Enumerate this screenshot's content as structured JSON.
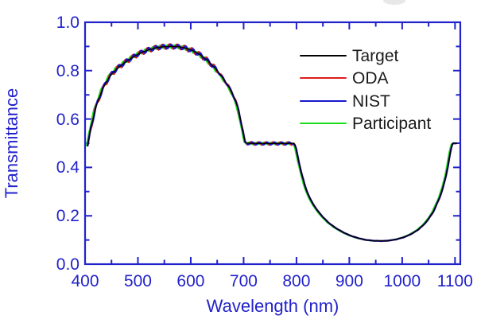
{
  "figure": {
    "background": "#ffffff",
    "axis_color": "#2222cc",
    "text_color": "#1a1a1a",
    "artifact_note": "faint cropped text remnant at top edge"
  },
  "legend": {
    "position": "upper-right-inside"
  },
  "chart_data": {
    "type": "line",
    "title": "",
    "xlabel": "Wavelength (nm)",
    "ylabel": "Transmittance",
    "xlim": [
      400,
      1110
    ],
    "ylim": [
      0.0,
      1.0
    ],
    "grid": false,
    "x_major_ticks": [
      {
        "value": 400,
        "label": "400"
      },
      {
        "value": 500,
        "label": "500"
      },
      {
        "value": 600,
        "label": "600"
      },
      {
        "value": 700,
        "label": "700"
      },
      {
        "value": 800,
        "label": "800"
      },
      {
        "value": 900,
        "label": "900"
      },
      {
        "value": 1000,
        "label": "1000"
      },
      {
        "value": 1100,
        "label": "1100"
      }
    ],
    "x_minor_ticks": [
      450,
      550,
      650,
      750,
      850,
      950,
      1050
    ],
    "y_major_ticks": [
      {
        "value": 0.0,
        "label": "0.0"
      },
      {
        "value": 0.2,
        "label": "0.2"
      },
      {
        "value": 0.4,
        "label": "0.4"
      },
      {
        "value": 0.6,
        "label": "0.6"
      },
      {
        "value": 0.8,
        "label": "0.8"
      },
      {
        "value": 1.0,
        "label": "1.0"
      }
    ],
    "y_minor_ticks": [
      0.1,
      0.3,
      0.5,
      0.7,
      0.9
    ],
    "series": [
      {
        "name": "Target",
        "color": "#000000",
        "width": 1.4,
        "fringe_amp": 0,
        "fringe_phase": 0,
        "dx": 0,
        "z": 4
      },
      {
        "name": "ODA",
        "color": "#dd1d1d",
        "width": 2.2,
        "fringe_amp": 0.0105,
        "fringe_phase": 1.0,
        "dx": 0,
        "z": 2
      },
      {
        "name": "NIST",
        "color": "#1818cc",
        "width": 2.2,
        "fringe_amp": 0.0085,
        "fringe_phase": 0,
        "dx": 0,
        "z": 3
      },
      {
        "name": "Participant",
        "color": "#1ddd1d",
        "width": 2.2,
        "fringe_amp": 0.0065,
        "fringe_phase": 2.0,
        "dx": -1.2,
        "z": 1
      }
    ],
    "fringe_period_nm": 14,
    "fringe_windows": [
      [
        410,
        650,
        1.0
      ],
      [
        650,
        700,
        0.5
      ],
      [
        706,
        793,
        0.6
      ],
      [
        793,
        815,
        0.25
      ],
      [
        815,
        1048,
        0.06
      ],
      [
        1048,
        1092,
        0.18
      ],
      [
        1092,
        1103,
        0.08
      ]
    ],
    "base_points": [
      [
        405,
        0.49
      ],
      [
        410,
        0.555
      ],
      [
        415,
        0.6
      ],
      [
        420,
        0.645
      ],
      [
        425,
        0.678
      ],
      [
        430,
        0.706
      ],
      [
        435,
        0.731
      ],
      [
        440,
        0.752
      ],
      [
        445,
        0.77
      ],
      [
        450,
        0.785
      ],
      [
        460,
        0.808
      ],
      [
        470,
        0.825
      ],
      [
        480,
        0.841
      ],
      [
        490,
        0.855
      ],
      [
        500,
        0.868
      ],
      [
        510,
        0.878
      ],
      [
        520,
        0.886
      ],
      [
        530,
        0.892
      ],
      [
        540,
        0.897
      ],
      [
        550,
        0.899
      ],
      [
        560,
        0.9
      ],
      [
        570,
        0.9
      ],
      [
        580,
        0.898
      ],
      [
        590,
        0.893
      ],
      [
        600,
        0.886
      ],
      [
        610,
        0.876
      ],
      [
        620,
        0.862
      ],
      [
        630,
        0.845
      ],
      [
        640,
        0.824
      ],
      [
        650,
        0.8
      ],
      [
        660,
        0.772
      ],
      [
        670,
        0.74
      ],
      [
        678,
        0.71
      ],
      [
        684,
        0.68
      ],
      [
        690,
        0.64
      ],
      [
        695,
        0.59
      ],
      [
        700,
        0.535
      ],
      [
        703,
        0.505
      ],
      [
        706,
        0.5
      ],
      [
        720,
        0.499
      ],
      [
        740,
        0.499
      ],
      [
        760,
        0.499
      ],
      [
        780,
        0.499
      ],
      [
        795,
        0.499
      ],
      [
        798,
        0.488
      ],
      [
        802,
        0.45
      ],
      [
        806,
        0.41
      ],
      [
        810,
        0.372
      ],
      [
        815,
        0.332
      ],
      [
        820,
        0.3
      ],
      [
        826,
        0.27
      ],
      [
        832,
        0.247
      ],
      [
        840,
        0.221
      ],
      [
        850,
        0.195
      ],
      [
        860,
        0.173
      ],
      [
        870,
        0.156
      ],
      [
        880,
        0.142
      ],
      [
        890,
        0.13
      ],
      [
        900,
        0.12
      ],
      [
        910,
        0.112
      ],
      [
        920,
        0.106
      ],
      [
        930,
        0.101
      ],
      [
        940,
        0.098
      ],
      [
        950,
        0.0965
      ],
      [
        960,
        0.096
      ],
      [
        970,
        0.0965
      ],
      [
        980,
        0.099
      ],
      [
        990,
        0.103
      ],
      [
        1000,
        0.109
      ],
      [
        1010,
        0.117
      ],
      [
        1020,
        0.128
      ],
      [
        1030,
        0.142
      ],
      [
        1040,
        0.161
      ],
      [
        1050,
        0.186
      ],
      [
        1060,
        0.221
      ],
      [
        1070,
        0.27
      ],
      [
        1076,
        0.307
      ],
      [
        1082,
        0.355
      ],
      [
        1087,
        0.41
      ],
      [
        1091,
        0.46
      ],
      [
        1094,
        0.49
      ],
      [
        1096,
        0.5
      ],
      [
        1103,
        0.5
      ]
    ]
  }
}
